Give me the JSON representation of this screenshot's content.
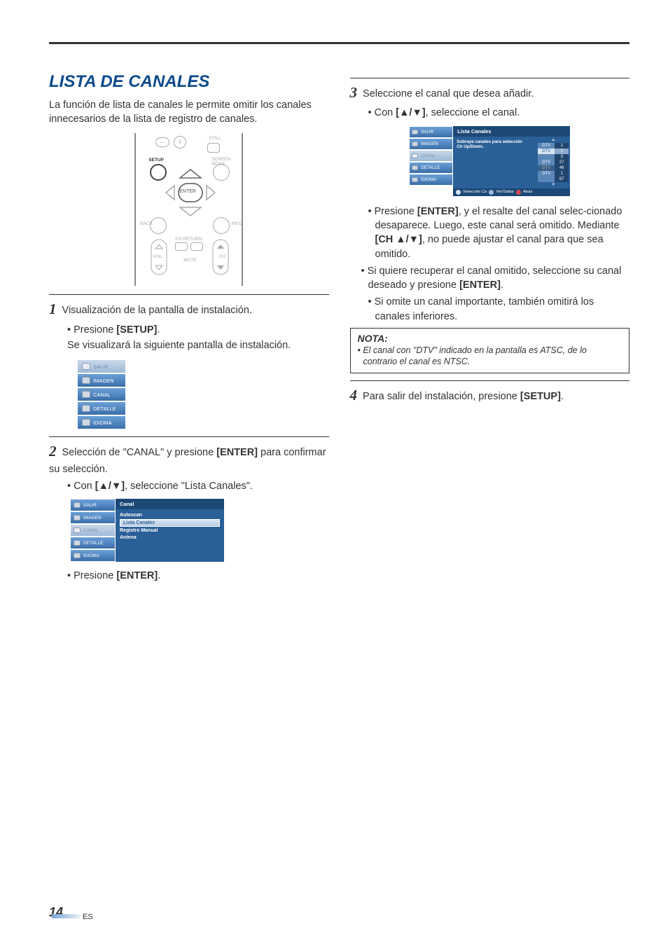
{
  "title": "LISTA DE CANALES",
  "intro": "La función de lista de canales le permite omitir los canales innecesarios de la lista de registro de canales.",
  "remote": {
    "labels": {
      "still": "STILL",
      "screen": "SCREEN MODE",
      "setup": "SETUP",
      "enter": "ENTER",
      "back": "BACK",
      "info": "INFO",
      "chreturn": "CH RETURN",
      "vol": "VOL.",
      "mute": "MUTE",
      "ch": "CH",
      "minus": "—",
      "zero": "0"
    }
  },
  "step1": {
    "num": "1",
    "text": "Visualización de la pantalla de instalación.",
    "b1": "• Presione ",
    "b1k": "[SETUP]",
    "b1end": ".",
    "b2": "Se visualizará la siguiente pantalla de instalación."
  },
  "menu1": {
    "items": [
      "SALIR",
      "IMAGEN",
      "CANAL",
      "DETALLE",
      "IDIOMA"
    ]
  },
  "step2": {
    "num": "2",
    "t1a": "Selección de \"CANAL\" y presione ",
    "t1k": "[ENTER]",
    "t1b": " para confirmar su selección.",
    "b1a": "• Con ",
    "b1k": "[▲/▼]",
    "b1b": ", seleccione \"Lista Canales\"."
  },
  "menu2": {
    "left": [
      "SALIR",
      "IMAGEN",
      "CANAL",
      "DETALLE",
      "IDIOMA"
    ],
    "header": "Canal",
    "items": [
      "Autoscan",
      "Lista Canales",
      "Registro Manual",
      "Antena"
    ],
    "hl_index": 1
  },
  "step2b": {
    "a": "• Presione ",
    "k": "[ENTER]",
    "b": "."
  },
  "step3": {
    "num": "3",
    "text": "Seleccione el canal que desea añadir.",
    "b1a": "• Con ",
    "b1k": "[▲/▼]",
    "b1b": ", seleccione el canal."
  },
  "screen3": {
    "left": [
      "SALIR",
      "IMAGEN",
      "CANAL",
      "DETALLE",
      "IDIOMA"
    ],
    "header": "Lista Canales",
    "text1": "Subraye canales para selección",
    "text2": "Ch Up/Down.",
    "channels": [
      {
        "l": "DTV",
        "r": "1",
        "cls": ""
      },
      {
        "l": "DTV",
        "r": "2",
        "cls": "hl"
      },
      {
        "l": "",
        "r": "3",
        "cls": ""
      },
      {
        "l": "DTV",
        "r": "27",
        "cls": ""
      },
      {
        "l": "DTV",
        "r": "46",
        "cls": "dim"
      },
      {
        "l": "DTV",
        "r": "1",
        "cls": ""
      },
      {
        "l": "",
        "r": "87",
        "cls": ""
      }
    ],
    "foot": {
      "c1": "#d8e4f2",
      "t1": "Selección Ca",
      "c2": "#9fb9d8",
      "t2": "Ver/Saltar",
      "c3": "#d94a4a",
      "t3": "Atrás"
    }
  },
  "step3b": [
    {
      "pre": "• Presione ",
      "k": "[ENTER]",
      "post": ", y el resalte del canal selec-cionado desaparece. Luego, este canal será omitido. Mediante ",
      "k2": "[CH ▲/▼]",
      "post2": ", no puede ajustar el canal para que sea omitido."
    },
    {
      "pre": "• Si quiere recuperar el canal omitido, seleccione su canal deseado y presione ",
      "k": "[ENTER]",
      "post": "."
    },
    {
      "pre": "• Si omite un canal importante, también omitirá los canales inferiores."
    }
  ],
  "nota": {
    "title": "NOTA:",
    "body": "• El canal con \"DTV\" indicado en la pantalla es ATSC, de lo contrario el canal es NTSC."
  },
  "step4": {
    "num": "4",
    "a": "Para salir del instalación, presione ",
    "k": "[SETUP]",
    "b": "."
  },
  "footer": {
    "page": "14",
    "lang": "ES"
  }
}
